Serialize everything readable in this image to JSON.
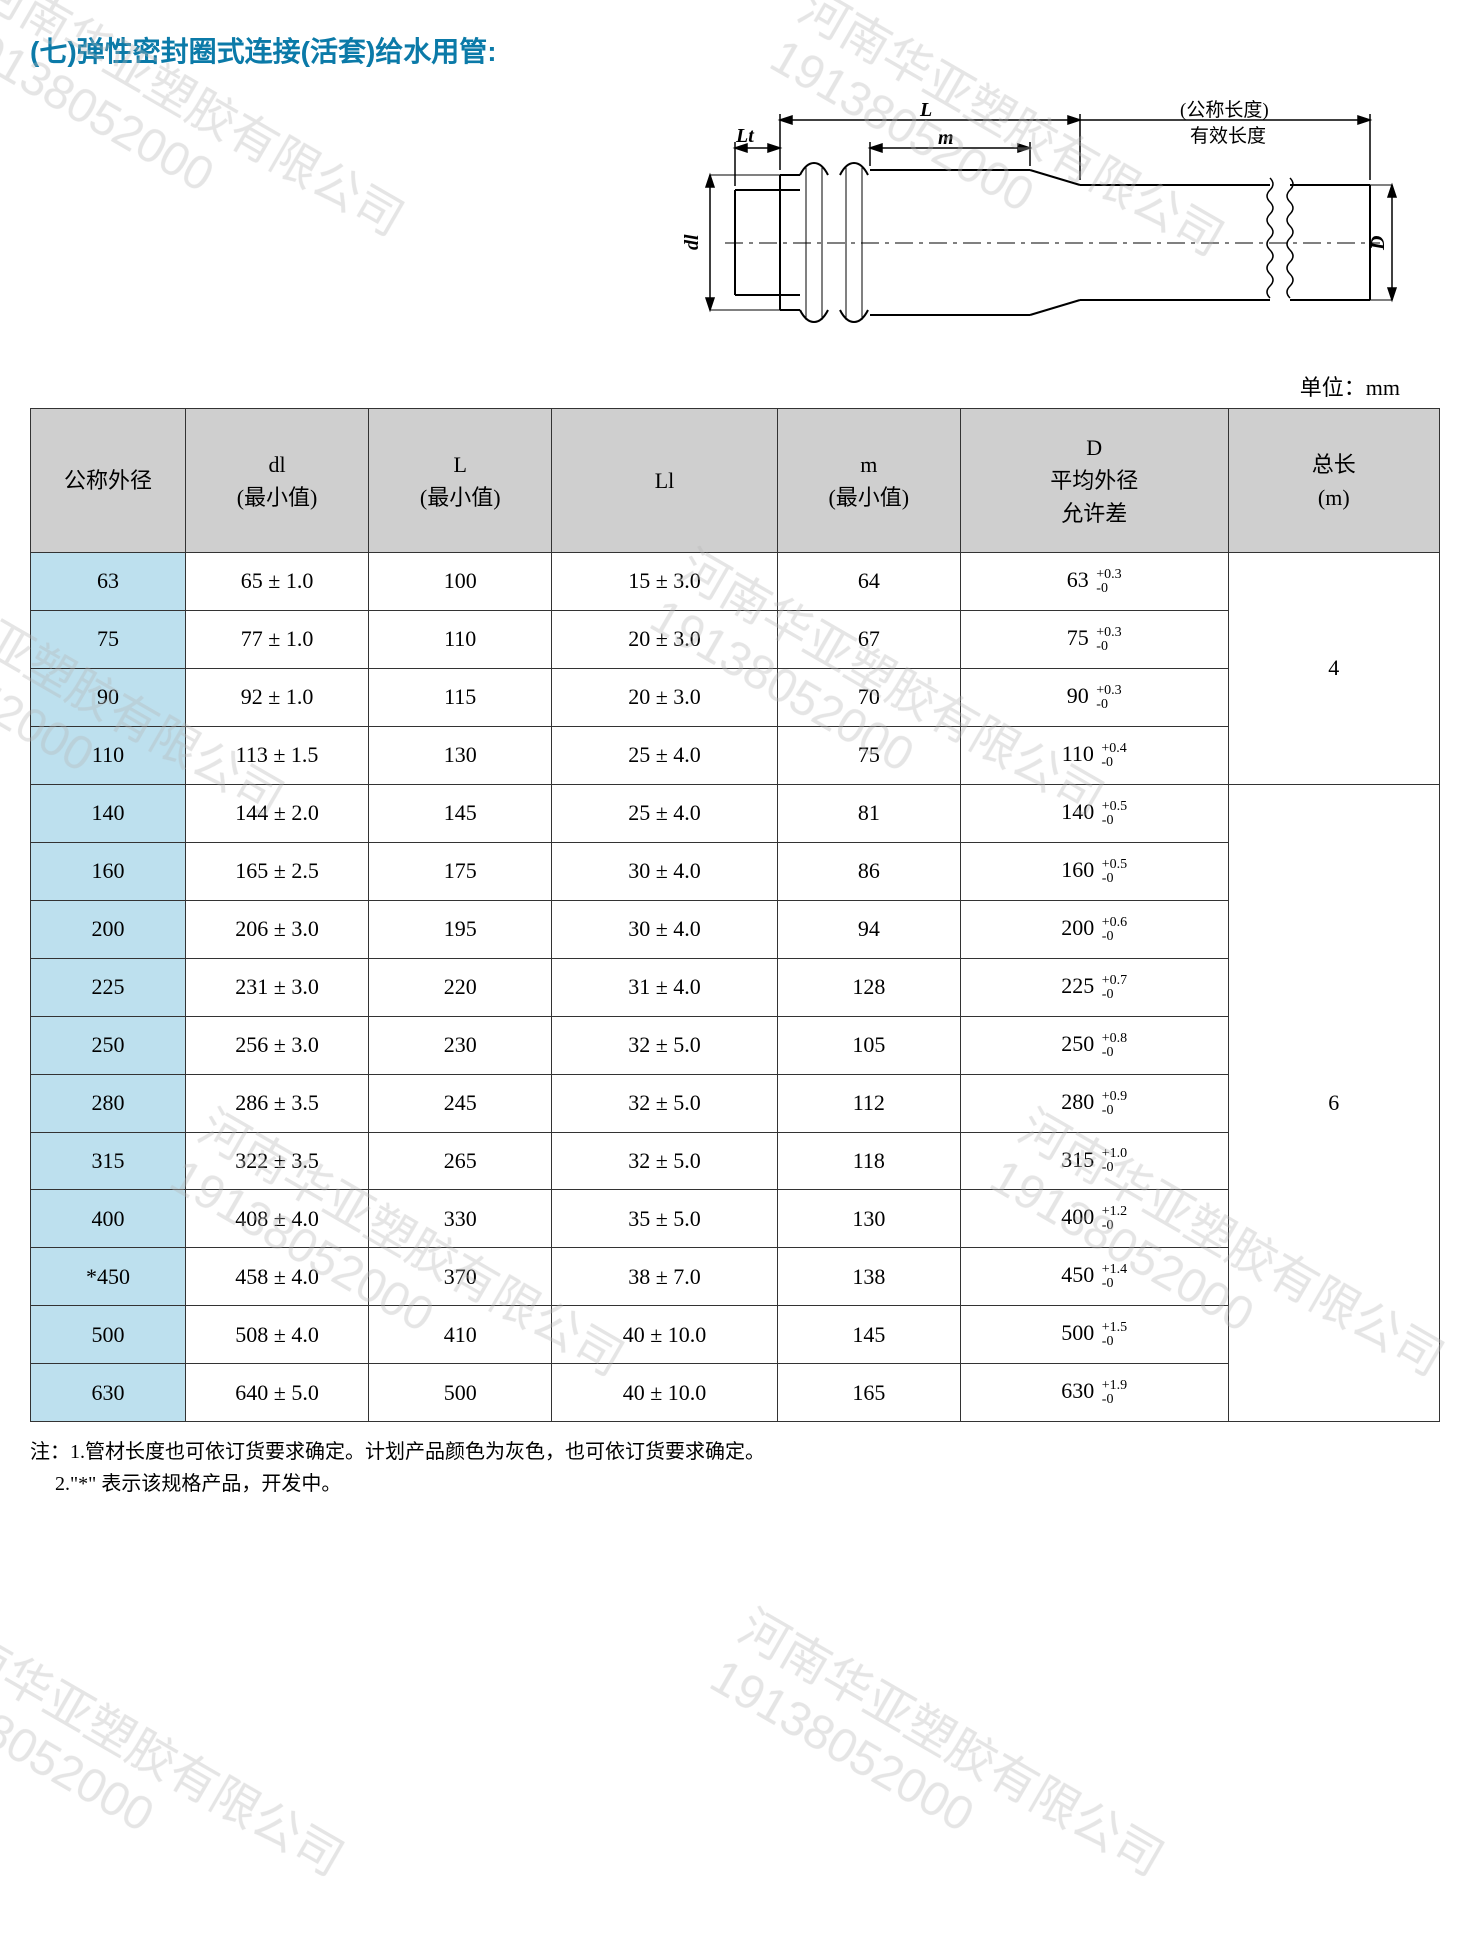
{
  "title": "(七)弹性密封圈式连接(活套)给水用管:",
  "unit_label": "单位：mm",
  "diagram": {
    "labels": {
      "L": "L",
      "Lt": "Lt",
      "m": "m",
      "dl": "dl",
      "D": "D",
      "nominal": "(公称长度)",
      "effective": "有效长度"
    },
    "stroke": "#000000"
  },
  "table": {
    "headers": {
      "c0": "公称外径",
      "c1_a": "dl",
      "c1_b": "(最小值)",
      "c2_a": "L",
      "c2_b": "(最小值)",
      "c3": "Ll",
      "c4_a": "m",
      "c4_b": "(最小值)",
      "c5_a": "D",
      "c5_b": "平均外径",
      "c5_c": "允许差",
      "c6_a": "总长",
      "c6_b": "(m)"
    },
    "col_widths": [
      "11%",
      "13%",
      "13%",
      "16%",
      "13%",
      "19%",
      "15%"
    ],
    "header_bg": "#cfcfcf",
    "rowhead_bg": "#bde0ee",
    "border_color": "#333333",
    "groups": [
      {
        "total_len": "4",
        "rows": [
          {
            "nom": "63",
            "dl": "65 ± 1.0",
            "L": "100",
            "Ll": "15 ± 3.0",
            "m": "64",
            "D": "63",
            "tol_up": "+0.3",
            "tol_dn": "-0"
          },
          {
            "nom": "75",
            "dl": "77 ± 1.0",
            "L": "110",
            "Ll": "20 ± 3.0",
            "m": "67",
            "D": "75",
            "tol_up": "+0.3",
            "tol_dn": "-0"
          },
          {
            "nom": "90",
            "dl": "92 ± 1.0",
            "L": "115",
            "Ll": "20 ± 3.0",
            "m": "70",
            "D": "90",
            "tol_up": "+0.3",
            "tol_dn": "-0"
          },
          {
            "nom": "110",
            "dl": "113 ± 1.5",
            "L": "130",
            "Ll": "25 ± 4.0",
            "m": "75",
            "D": "110",
            "tol_up": "+0.4",
            "tol_dn": "-0"
          }
        ]
      },
      {
        "total_len": "6",
        "rows": [
          {
            "nom": "140",
            "dl": "144 ± 2.0",
            "L": "145",
            "Ll": "25 ± 4.0",
            "m": "81",
            "D": "140",
            "tol_up": "+0.5",
            "tol_dn": "-0"
          },
          {
            "nom": "160",
            "dl": "165 ± 2.5",
            "L": "175",
            "Ll": "30 ± 4.0",
            "m": "86",
            "D": "160",
            "tol_up": "+0.5",
            "tol_dn": "-0"
          },
          {
            "nom": "200",
            "dl": "206 ± 3.0",
            "L": "195",
            "Ll": "30 ± 4.0",
            "m": "94",
            "D": "200",
            "tol_up": "+0.6",
            "tol_dn": "-0"
          },
          {
            "nom": "225",
            "dl": "231 ± 3.0",
            "L": "220",
            "Ll": "31 ± 4.0",
            "m": "128",
            "D": "225",
            "tol_up": "+0.7",
            "tol_dn": "-0"
          },
          {
            "nom": "250",
            "dl": "256 ± 3.0",
            "L": "230",
            "Ll": "32 ± 5.0",
            "m": "105",
            "D": "250",
            "tol_up": "+0.8",
            "tol_dn": "-0"
          },
          {
            "nom": "280",
            "dl": "286 ± 3.5",
            "L": "245",
            "Ll": "32 ± 5.0",
            "m": "112",
            "D": "280",
            "tol_up": "+0.9",
            "tol_dn": "-0"
          },
          {
            "nom": "315",
            "dl": "322 ± 3.5",
            "L": "265",
            "Ll": "32 ± 5.0",
            "m": "118",
            "D": "315",
            "tol_up": "+1.0",
            "tol_dn": "-0"
          },
          {
            "nom": "400",
            "dl": "408 ± 4.0",
            "L": "330",
            "Ll": "35 ± 5.0",
            "m": "130",
            "D": "400",
            "tol_up": "+1.2",
            "tol_dn": "-0"
          },
          {
            "nom": "*450",
            "dl": "458 ± 4.0",
            "L": "370",
            "Ll": "38 ± 7.0",
            "m": "138",
            "D": "450",
            "tol_up": "+1.4",
            "tol_dn": "-0"
          },
          {
            "nom": "500",
            "dl": "508 ± 4.0",
            "L": "410",
            "Ll": "40 ± 10.0",
            "m": "145",
            "D": "500",
            "tol_up": "+1.5",
            "tol_dn": "-0"
          },
          {
            "nom": "630",
            "dl": "640 ± 5.0",
            "L": "500",
            "Ll": "40 ± 10.0",
            "m": "165",
            "D": "630",
            "tol_up": "+1.9",
            "tol_dn": "-0"
          }
        ]
      }
    ]
  },
  "notes": {
    "prefix": "注：",
    "n1": "1.管材长度也可依订货要求确定。计划产品颜色为灰色，也可依订货要求确定。",
    "n2": "2.\"*\" 表示该规格产品，开发中。"
  },
  "watermark": {
    "text1": "河南华亚塑胶有限公司",
    "text2": "19138052000",
    "color": "rgba(180,180,180,0.35)"
  }
}
